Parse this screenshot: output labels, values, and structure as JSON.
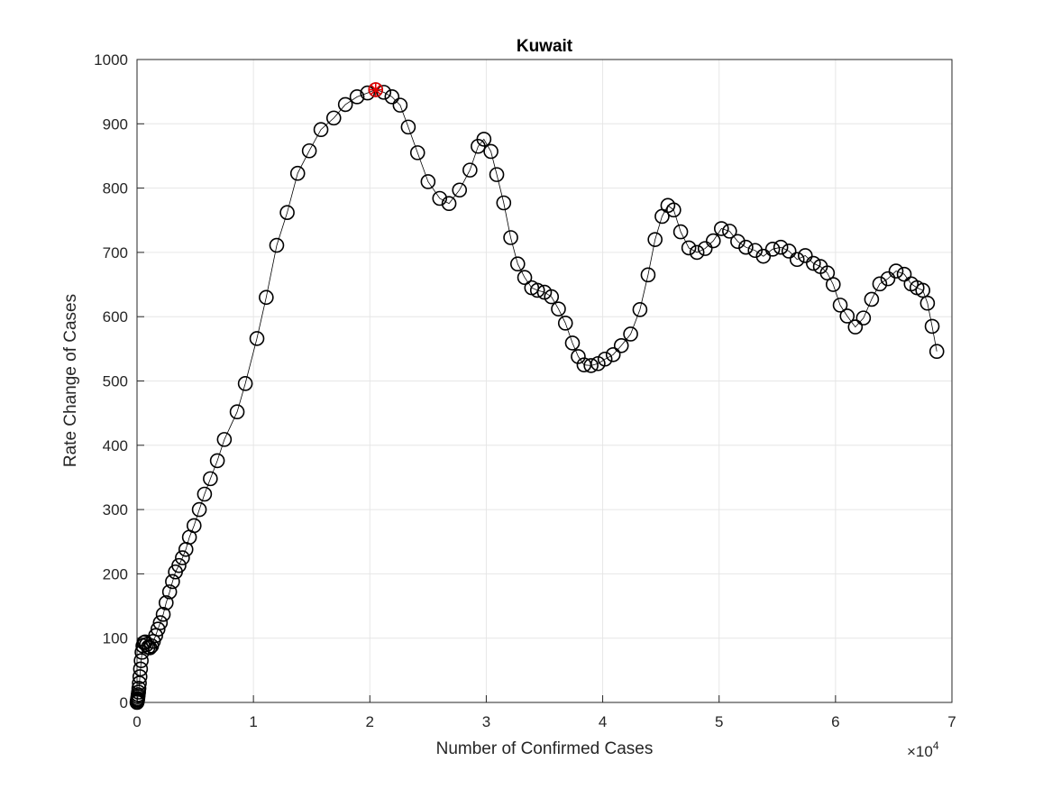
{
  "chart_data": {
    "type": "scatter",
    "title": "Kuwait",
    "xlabel": "Number of Confirmed Cases",
    "ylabel": "Rate Change of Cases",
    "x_exponent_base": "×10",
    "x_exponent_power": "4",
    "xlim": [
      0,
      70000
    ],
    "ylim": [
      0,
      1000
    ],
    "x_ticks": [
      0,
      10000,
      20000,
      30000,
      40000,
      50000,
      60000,
      70000
    ],
    "x_tick_labels": [
      "0",
      "1",
      "2",
      "3",
      "4",
      "5",
      "6",
      "7"
    ],
    "y_ticks": [
      0,
      100,
      200,
      300,
      400,
      500,
      600,
      700,
      800,
      900,
      1000
    ],
    "y_tick_labels": [
      "0",
      "100",
      "200",
      "300",
      "400",
      "500",
      "600",
      "700",
      "800",
      "900",
      "1000"
    ],
    "grid": true,
    "series": [
      {
        "marker": "circle",
        "color": "#000000",
        "line": true,
        "x": [
          0,
          20,
          40,
          60,
          80,
          100,
          130,
          160,
          200,
          250,
          300,
          360,
          430,
          510,
          600,
          700,
          820,
          960,
          1100,
          1250,
          1400,
          1600,
          1800,
          2000,
          2250,
          2500,
          2800,
          3050,
          3300,
          3600,
          3900,
          4200,
          4500,
          4900,
          5350,
          5800,
          6300,
          6900,
          7500,
          8600,
          9300,
          10300,
          11100,
          12000,
          12900,
          13800,
          14800,
          15800,
          16900,
          17900,
          18900,
          19800,
          20500,
          21200,
          21900,
          22600,
          23300,
          24100,
          25000,
          26000,
          26800,
          27700,
          28600,
          29300,
          29800,
          30400,
          30900,
          31500,
          32100,
          32700,
          33300,
          33900,
          34400,
          35000,
          35600,
          36200,
          36800,
          37400,
          37900,
          38400,
          39000,
          39600,
          40200,
          40900,
          41600,
          42400,
          43200,
          43900,
          44500,
          45100,
          45600,
          46100,
          46700,
          47400,
          48100,
          48800,
          49500,
          50200,
          50900,
          51600,
          52300,
          53100,
          53800,
          54600,
          55300,
          56000,
          56700,
          57400,
          58100,
          58700,
          59300,
          59800,
          60400,
          61000,
          61700,
          62400,
          63100,
          63800,
          64500,
          65200,
          65900,
          66500,
          67000,
          67500,
          67900,
          68300,
          68700
        ],
        "y": [
          0,
          2,
          4,
          6,
          9,
          12,
          16,
          22,
          30,
          40,
          52,
          65,
          78,
          88,
          93,
          94,
          90,
          86,
          85,
          88,
          95,
          104,
          114,
          124,
          137,
          155,
          172,
          188,
          203,
          213,
          225,
          238,
          257,
          275,
          300,
          324,
          348,
          376,
          409,
          452,
          496,
          566,
          630,
          711,
          762,
          823,
          858,
          891,
          909,
          930,
          942,
          948,
          953,
          949,
          942,
          929,
          895,
          855,
          810,
          784,
          776,
          797,
          828,
          865,
          876,
          857,
          821,
          777,
          723,
          682,
          661,
          645,
          641,
          638,
          631,
          612,
          590,
          559,
          538,
          525,
          524,
          527,
          534,
          541,
          555,
          573,
          611,
          665,
          720,
          756,
          773,
          766,
          732,
          707,
          700,
          706,
          718,
          737,
          733,
          717,
          708,
          703,
          694,
          705,
          708,
          702,
          689,
          695,
          683,
          678,
          668,
          650,
          618,
          601,
          584,
          598,
          627,
          651,
          659,
          671,
          666,
          651,
          645,
          641,
          621,
          585,
          546
        ]
      }
    ],
    "highlight": {
      "marker": "asterisk",
      "color": "#e60000",
      "x": 20500,
      "y": 953
    }
  }
}
